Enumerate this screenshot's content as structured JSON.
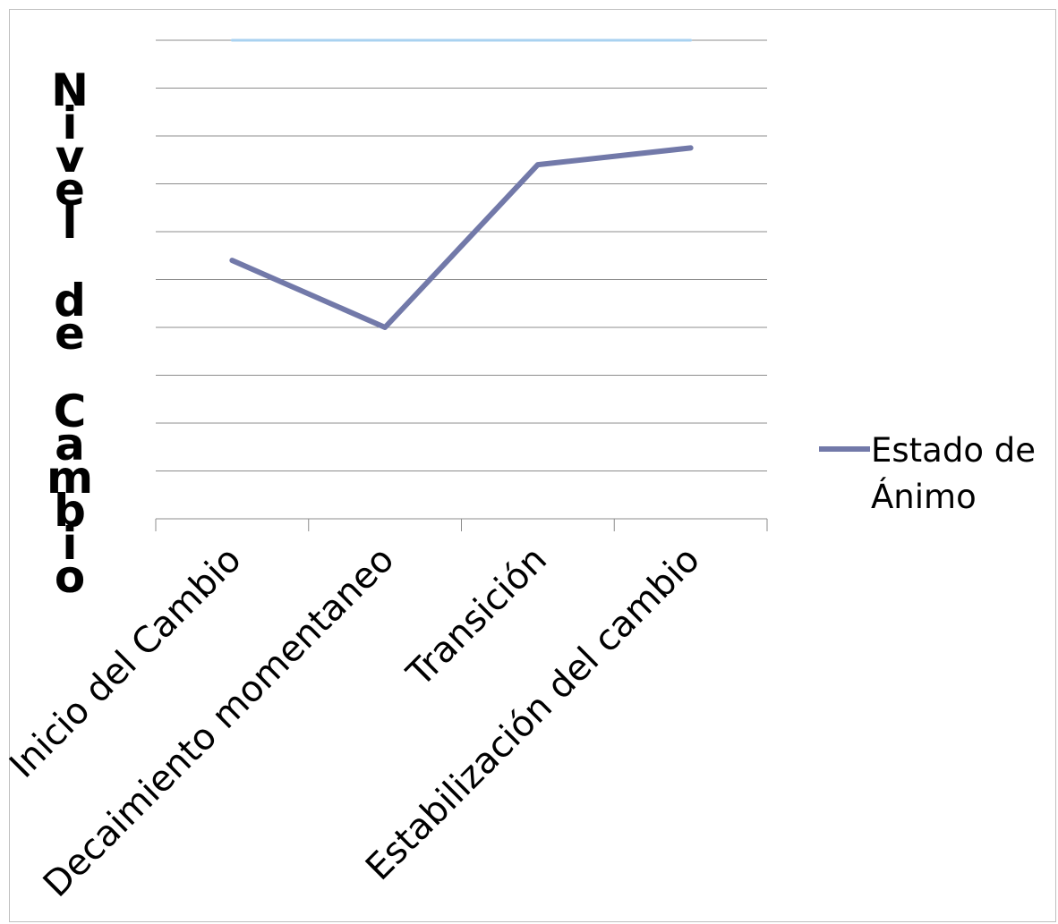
{
  "chart_data": {
    "type": "line",
    "title": "",
    "xlabel": "",
    "ylabel": "Nivel de Cambio",
    "categories": [
      "Inicio del Cambio",
      "Decaimiento momentaneo",
      "Transición",
      "Estabilización del cambio"
    ],
    "series": [
      {
        "name": "Estado de Ánimo",
        "values": [
          5.4,
          4.0,
          7.4,
          7.75
        ],
        "color": "#7279A9"
      },
      {
        "name": "",
        "values": [
          10,
          10,
          10,
          10
        ],
        "color": "#A9D2F0"
      }
    ],
    "ylim": [
      0,
      10
    ],
    "grid": true,
    "legend": "right",
    "legend_label_lines": [
      "Estado de",
      "Ánimo"
    ]
  },
  "colors": {
    "gridline": "#8c8c8c",
    "axis": "#8c8c8c",
    "frame": "#bfbfbf"
  }
}
